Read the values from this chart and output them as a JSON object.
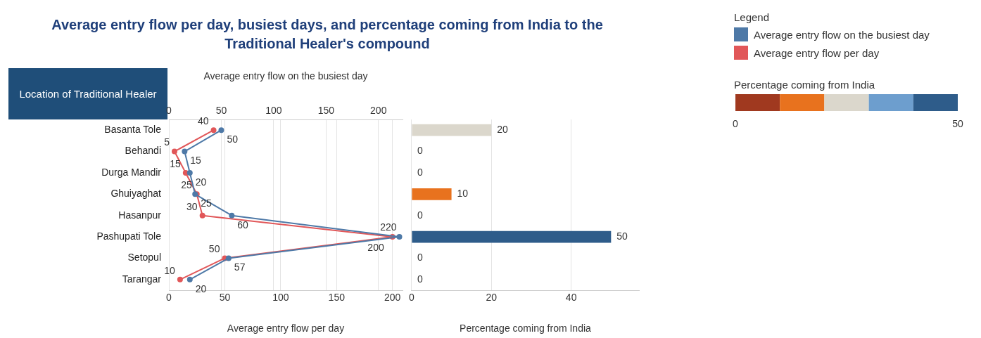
{
  "chart_data": [
    {
      "type": "line",
      "orientation": "horizontal",
      "title": "Average entry flow per day, busiest days, and percentage coming from India to the Traditional Healer's compound",
      "ylabel": "Location of Traditional Healer",
      "legend_title": "Legend",
      "legend": "right",
      "categories": [
        "Basanta Tole",
        "Behandi",
        "Durga Mandir",
        "Ghuiyaghat",
        "Hasanpur",
        "Pashupati Tole",
        "Setopul",
        "Tarangar"
      ],
      "series": [
        {
          "name": "Average entry flow on the busiest day",
          "color": "#4e79a7",
          "axis": "x2",
          "values": [
            50,
            15,
            20,
            25,
            60,
            220,
            57,
            20
          ]
        },
        {
          "name": "Average entry flow per day",
          "color": "#e15759",
          "values": [
            40,
            5,
            15,
            25,
            30,
            200,
            50,
            10
          ]
        }
      ],
      "xlabel": "Average entry flow per day",
      "xlim": [
        0,
        209
      ],
      "xticks": [
        0,
        50,
        100,
        150,
        200
      ],
      "x2label": "Average entry flow on the busiest day",
      "x2lim": [
        0,
        223
      ],
      "x2ticks": [
        0,
        50,
        100,
        150,
        200
      ],
      "data_labels": true,
      "marker": "circle",
      "grid": "x"
    },
    {
      "type": "bar",
      "orientation": "horizontal",
      "categories": [
        null,
        null,
        null,
        null,
        null,
        null,
        null,
        null
      ],
      "values": [
        20,
        0,
        0,
        10,
        0,
        50,
        0,
        0
      ],
      "colors": [
        "#dbd7cc",
        "#a0391f",
        "#a0391f",
        "#e8721e",
        "#a0391f",
        "#2e5c8a",
        "#a0391f",
        "#a0391f"
      ],
      "xlabel": "Percentage coming from India",
      "xlim": [
        0,
        57
      ],
      "xticks": [
        0,
        20,
        40
      ],
      "data_labels": true,
      "grid": "x",
      "tick_labels": "x",
      "clabel": "Percentage coming from India",
      "clim": [
        0,
        50
      ],
      "cticks": [
        0,
        50
      ]
    }
  ]
}
